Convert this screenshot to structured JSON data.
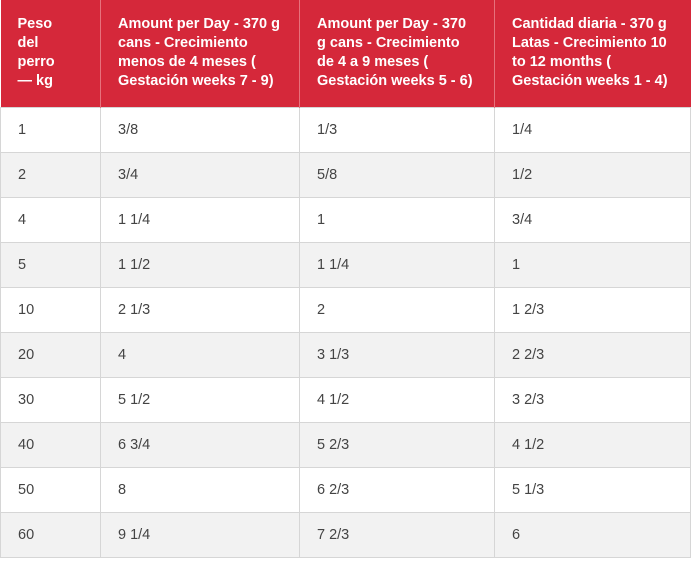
{
  "table": {
    "header": [
      "Peso del perro — kg",
      "Amount per Day - 370 g cans - Crecimiento menos de 4 meses ( Gestación weeks 7 - 9)",
      "Amount per Day - 370 g cans - Crecimiento de 4 a 9 meses ( Gestación weeks 5 - 6)",
      "Cantidad diaria - 370 g Latas - Crecimiento 10 to 12 months ( Gestación weeks 1 - 4)"
    ],
    "rows": [
      [
        "1",
        "3/8",
        "1/3",
        "1/4"
      ],
      [
        "2",
        "3/4",
        "5/8",
        "1/2"
      ],
      [
        "4",
        "1 1/4",
        "1",
        "3/4"
      ],
      [
        "5",
        "1 1/2",
        "1 1/4",
        "1"
      ],
      [
        "10",
        "2 1/3",
        "2",
        "1 2/3"
      ],
      [
        "20",
        "4",
        "3 1/3",
        "2 2/3"
      ],
      [
        "30",
        "5 1/2",
        "4 1/2",
        "3 2/3"
      ],
      [
        "40",
        "6 3/4",
        "5 2/3",
        "4 1/2"
      ],
      [
        "50",
        "8",
        "6 2/3",
        "5 1/3"
      ],
      [
        "60",
        "9 1/4",
        "7 2/3",
        "6"
      ]
    ]
  }
}
